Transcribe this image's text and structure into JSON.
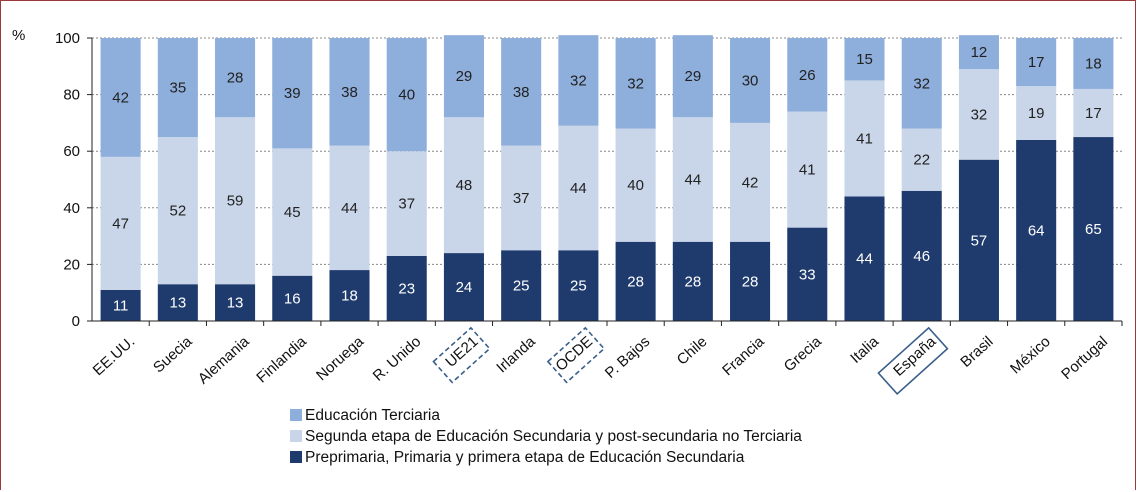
{
  "chart_data": {
    "type": "bar",
    "stacked": true,
    "ylabel": "%",
    "ylim": [
      0,
      100
    ],
    "yticks": [
      0,
      20,
      40,
      60,
      80,
      100
    ],
    "grid": true,
    "legend_position": "bottom",
    "categories": [
      "EE.UU.",
      "Suecia",
      "Alemania",
      "Finlandia",
      "Noruega",
      "R. Unido",
      "UE21",
      "Irlanda",
      "OCDE",
      "P. Bajos",
      "Chile",
      "Francia",
      "Grecia",
      "Italia",
      "España",
      "Brasil",
      "México",
      "Portugal"
    ],
    "highlighted_dashed": [
      "UE21",
      "OCDE"
    ],
    "highlighted_solid": [
      "España"
    ],
    "series": [
      {
        "name": "Preprimaria, Primaria y primera etapa de Educación Secundaria",
        "color": "#1f3b6e",
        "values": [
          11,
          13,
          13,
          16,
          18,
          23,
          24,
          25,
          25,
          28,
          28,
          28,
          33,
          44,
          46,
          57,
          64,
          65
        ]
      },
      {
        "name": "Segunda etapa de Educación Secundaria y post-secundaria no Terciaria",
        "color": "#c9d6ea",
        "values": [
          47,
          52,
          59,
          45,
          44,
          37,
          48,
          37,
          44,
          40,
          44,
          42,
          41,
          41,
          22,
          32,
          19,
          17
        ]
      },
      {
        "name": "Educación Terciaria",
        "color": "#8eaedb",
        "values": [
          42,
          35,
          28,
          39,
          38,
          40,
          29,
          38,
          32,
          32,
          29,
          30,
          26,
          15,
          32,
          12,
          17,
          18
        ]
      }
    ],
    "legend_order": [
      2,
      1,
      0
    ]
  },
  "colors": {
    "frame": "#9b3a3a",
    "axis": "#222222",
    "grid": "#888888",
    "label_light": "#ffffff",
    "label_dark": "#222222",
    "highlight_box": "#3a5f8a"
  }
}
